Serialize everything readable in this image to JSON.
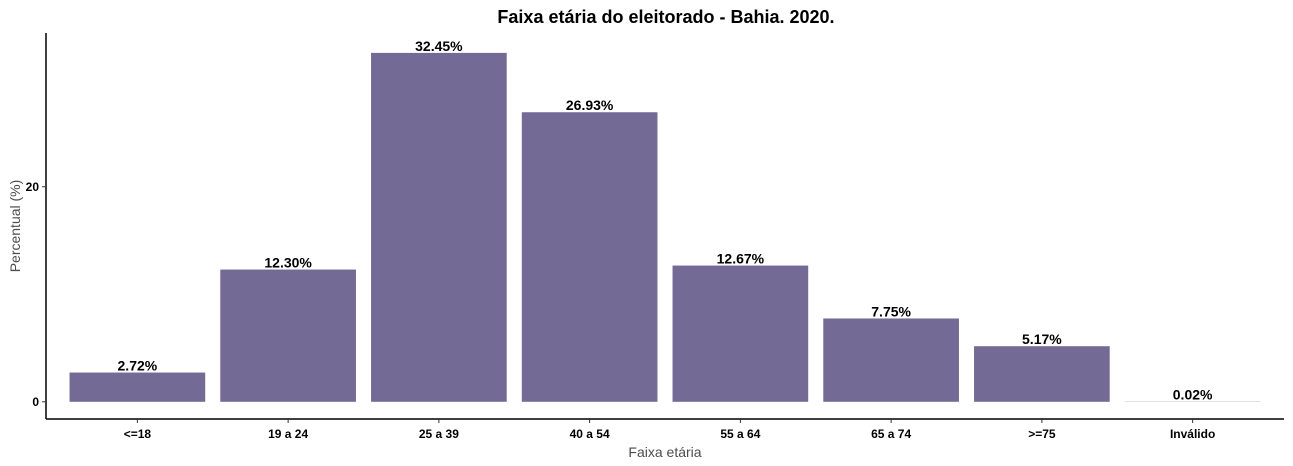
{
  "chart_data": {
    "type": "bar",
    "title": "Faixa etária do eleitorado - Bahia. 2020.",
    "xlabel": "Faixa etária",
    "ylabel": "Percentual (%)",
    "categories": [
      "<=18",
      "19 a 24",
      "25 a 39",
      "40 a 54",
      "55 a 64",
      "65 a 74",
      ">=75",
      "Inválido"
    ],
    "values": [
      2.72,
      12.3,
      32.45,
      26.93,
      12.67,
      7.75,
      5.17,
      0.02
    ],
    "value_labels": [
      "2.72%",
      "12.30%",
      "32.45%",
      "26.93%",
      "12.67%",
      "7.75%",
      "5.17%",
      "0.02%"
    ],
    "yticks": [
      0,
      20
    ],
    "ytick_labels": [
      "0",
      "20"
    ],
    "ylim": [
      -1.6,
      34.3
    ],
    "grid": false,
    "bar_color": "#736b95"
  }
}
